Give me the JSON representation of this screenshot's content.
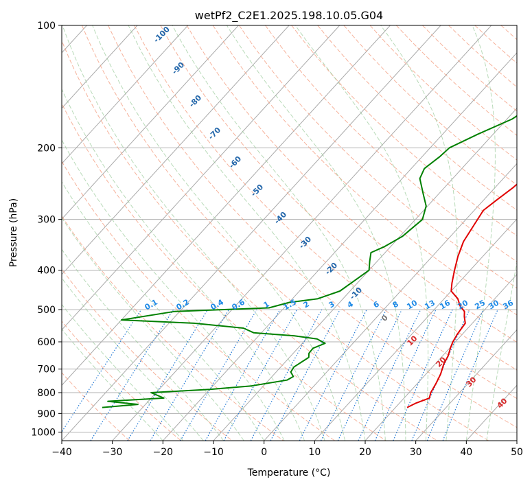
{
  "chart_data": {
    "type": "line",
    "title": "wetPf2_C2E1.2025.198.10.05.G04",
    "xlabel": "Temperature (°C)",
    "ylabel": "Pressure (hPa)",
    "xlim": [
      -40,
      50
    ],
    "ylim": [
      1050,
      100
    ],
    "y_scale": "log",
    "skew": "skew-T",
    "grid": true,
    "x_ticks": [
      -40,
      -30,
      -20,
      -10,
      0,
      10,
      20,
      30,
      40,
      50
    ],
    "y_ticks": [
      100,
      200,
      300,
      400,
      500,
      600,
      700,
      800,
      900,
      1000
    ],
    "series": [
      {
        "color": "#e00000",
        "x": [
          22.3,
          23.2,
          25.0,
          24.3,
          23.7,
          22.9,
          21.7,
          21.1,
          20.1,
          19.5,
          19.3,
          19.0,
          18.6,
          17.2,
          16.3,
          14.5,
          12.7,
          10.0,
          8.7,
          6.9,
          5.1,
          3.5,
          2.6,
          1.8,
          2.5,
          3.6,
          4.2,
          4.0,
          3.6,
          3.3,
          3.6,
          4.5,
          5.5,
          6.0,
          6.0,
          7.1,
          10.0
        ],
        "y": [
          870,
          850,
          825,
          800,
          760,
          720,
          680,
          650,
          620,
          600,
          590,
          575,
          540,
          520,
          505,
          490,
          470,
          450,
          430,
          400,
          370,
          340,
          310,
          285,
          270,
          250,
          230,
          210,
          190,
          170,
          155,
          140,
          125,
          115,
          110,
          105,
          100
        ]
      },
      {
        "color": "#008000",
        "x": [
          -38.0,
          -31.5,
          -38.0,
          -27.5,
          -31.0,
          -20.0,
          -12.4,
          -6.4,
          -5.8,
          -7.1,
          -7.4,
          -6.2,
          -6.9,
          -7.0,
          -6.1,
          -5.5,
          -7.9,
          -12.9,
          -21.5,
          -24.4,
          -35.0,
          -50.0,
          -41.0,
          -23.0,
          -20.0,
          -15.0,
          -12.0,
          -10.0,
          -11.5,
          -12.8,
          -11.2,
          -9.5,
          -8.6,
          -10.3,
          -13.0,
          -16.5,
          -17.4,
          -16.5,
          -16.2,
          -13.0,
          -9.0,
          -7.0,
          -5.0,
          -3.5,
          -2.5,
          -1.4,
          0.3,
          2.0,
          2.2
        ],
        "y": [
          870,
          855,
          840,
          825,
          800,
          785,
          770,
          745,
          730,
          712,
          692,
          655,
          640,
          622,
          612,
          605,
          590,
          580,
          570,
          555,
          540,
          530,
          505,
          495,
          480,
          470,
          450,
          400,
          380,
          362,
          350,
          330,
          300,
          278,
          260,
          238,
          225,
          210,
          200,
          185,
          170,
          155,
          140,
          130,
          125,
          117,
          110,
          104,
          100
        ]
      }
    ],
    "dry_adiabat_labels": [
      "-100",
      "-90",
      "-80",
      "-70",
      "-60",
      "-50",
      "-40",
      "-30",
      "-20",
      "-10"
    ],
    "moist_adiabat_labels": [
      "0",
      "10",
      "20",
      "30",
      "40"
    ],
    "mixing_ratio_labels": [
      "0.1",
      "0.2",
      "0.4",
      "0.6",
      "1",
      "1.5",
      "2",
      "3",
      "4",
      "6",
      "8",
      "10",
      "13",
      "16",
      "20",
      "25",
      "30",
      "36"
    ]
  }
}
